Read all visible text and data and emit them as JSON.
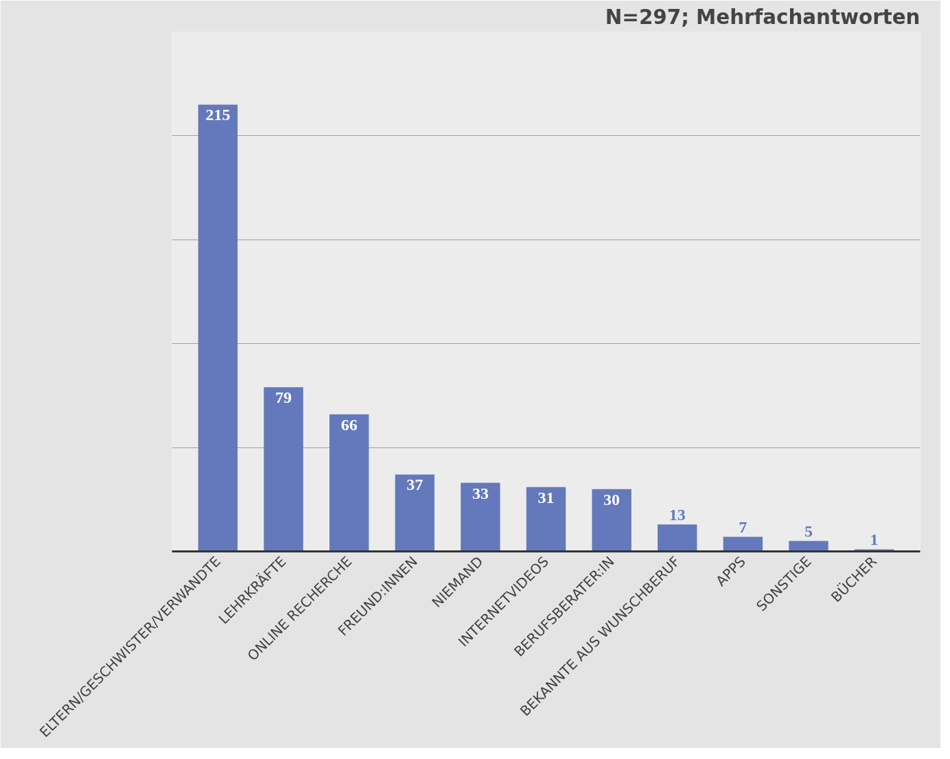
{
  "chart_data": {
    "type": "bar",
    "title": "N=297; Mehrfachantworten",
    "categories": [
      "ELTERN/GESCHWISTER/VERWANDTE",
      "LEHRKRÄFTE",
      "ONLINE RECHERCHE",
      "FREUND:INNEN",
      "NIEMAND",
      "INTERNETVIDEOS",
      "BERUFSBERATER:IN",
      "BEKANNTE AUS WUNSCHBERUF",
      "APPS",
      "SONSTIGE",
      "BÜCHER"
    ],
    "values": [
      215,
      79,
      66,
      37,
      33,
      31,
      30,
      13,
      7,
      5,
      1
    ],
    "color": "#6479bb",
    "ylim": [
      0,
      250
    ],
    "yticks": [
      {
        "value": 0,
        "label": null
      },
      {
        "value": 50,
        "label": null
      },
      {
        "value": 100,
        "label": null
      },
      {
        "value": 150,
        "label": null
      },
      {
        "value": 200,
        "label": null
      },
      {
        "value": 250,
        "label": null
      }
    ],
    "tick_labels": "x",
    "grid": "y",
    "data_labels": true
  }
}
